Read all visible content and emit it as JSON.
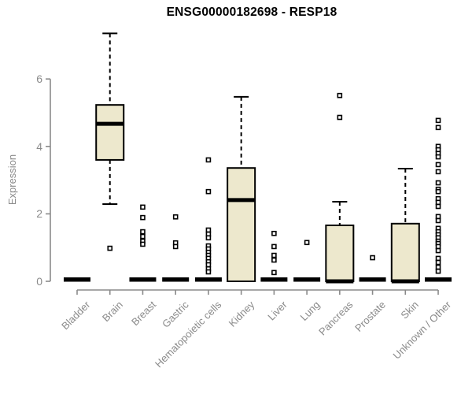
{
  "chart_data": {
    "type": "boxplot",
    "title": "ENSG00000182698 - RESP18",
    "ylabel": "Expression",
    "xlabel": "",
    "yticks": [
      0,
      2,
      4,
      6
    ],
    "ylim": [
      0,
      7.4
    ],
    "grid": false,
    "legend": "none",
    "categories": [
      "Bladder",
      "Brain",
      "Breast",
      "Gastric",
      "Hematopoietic cells",
      "Kidney",
      "Liver",
      "Lung",
      "Pancreas",
      "Prostate",
      "Skin",
      "Unknown / Other"
    ],
    "series": [
      {
        "label": "Bladder",
        "whisker_low": 0,
        "q1": 0,
        "median": 0,
        "q3": 0,
        "whisker_high": 0,
        "outliers": []
      },
      {
        "label": "Brain",
        "whisker_low": 2.29,
        "q1": 3.6,
        "median": 4.67,
        "q3": 5.23,
        "whisker_high": 7.35,
        "outliers": [
          0.98
        ]
      },
      {
        "label": "Breast",
        "whisker_low": 0,
        "q1": 0,
        "median": 0,
        "q3": 0,
        "whisker_high": 0,
        "outliers": [
          2.2,
          1.89,
          1.47,
          1.33,
          1.19,
          1.1
        ]
      },
      {
        "label": "Gastric",
        "whisker_low": 0,
        "q1": 0,
        "median": 0,
        "q3": 0,
        "whisker_high": 0,
        "outliers": [
          1.91,
          1.14,
          1.03
        ]
      },
      {
        "label": "Hematopoietic cells",
        "whisker_low": 0,
        "q1": 0,
        "median": 0,
        "q3": 0,
        "whisker_high": 0,
        "outliers": [
          3.6,
          2.66,
          1.52,
          1.4,
          1.29,
          1.05,
          0.96,
          0.86,
          0.77,
          0.68,
          0.58,
          0.49,
          0.37,
          0.28
        ]
      },
      {
        "label": "Kidney",
        "whisker_low": 0,
        "q1": 0,
        "median": 2.41,
        "q3": 3.36,
        "whisker_high": 5.47,
        "outliers": []
      },
      {
        "label": "Liver",
        "whisker_low": 0,
        "q1": 0,
        "median": 0,
        "q3": 0,
        "whisker_high": 0,
        "outliers": [
          1.42,
          1.03,
          0.77,
          0.63,
          0.26
        ]
      },
      {
        "label": "Lung",
        "whisker_low": 0,
        "q1": 0,
        "median": 0,
        "q3": 0,
        "whisker_high": 0,
        "outliers": [
          1.15
        ]
      },
      {
        "label": "Pancreas",
        "whisker_low": 0,
        "q1": 0,
        "median": 0,
        "q3": 1.66,
        "whisker_high": 2.36,
        "outliers": [
          5.51,
          4.86
        ]
      },
      {
        "label": "Prostate",
        "whisker_low": 0,
        "q1": 0,
        "median": 0,
        "q3": 0,
        "whisker_high": 0,
        "outliers": [
          0.7
        ]
      },
      {
        "label": "Skin",
        "whisker_low": 0,
        "q1": 0,
        "median": 0,
        "q3": 1.71,
        "whisker_high": 3.34,
        "outliers": []
      },
      {
        "label": "Unknown / Other",
        "whisker_low": 0,
        "q1": 0,
        "median": 0,
        "q3": 0,
        "whisker_high": 0,
        "outliers": [
          4.77,
          4.56,
          4.0,
          3.9,
          3.79,
          3.69,
          3.46,
          3.25,
          2.92,
          2.73,
          2.66,
          2.45,
          2.34,
          2.22,
          1.92,
          1.8,
          1.57,
          1.47,
          1.38,
          1.29,
          1.19,
          1.12,
          1.03,
          0.91,
          0.68,
          0.56,
          0.42,
          0.3
        ]
      }
    ],
    "colors": {
      "box_fill": "#ede8cd",
      "box_stroke": "#000000",
      "median": "#000000",
      "whisker": "#000000",
      "outlier_stroke": "#000000",
      "outlier_fill": "#ffffff",
      "axis": "#8a8a8a",
      "tick_label": "#8a8a8a",
      "title": "#000000",
      "background": "#ffffff"
    }
  }
}
